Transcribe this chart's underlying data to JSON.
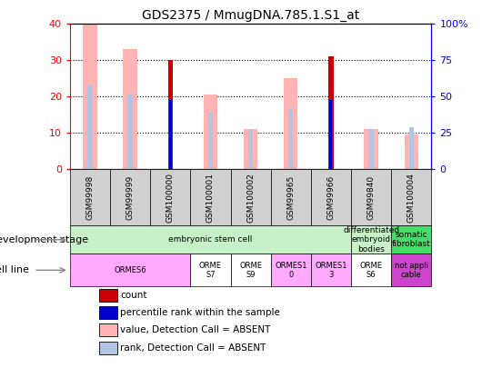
{
  "title": "GDS2375 / MmugDNA.785.1.S1_at",
  "samples": [
    "GSM99998",
    "GSM99999",
    "GSM100000",
    "GSM100001",
    "GSM100002",
    "GSM99965",
    "GSM99966",
    "GSM99840",
    "GSM100004"
  ],
  "count_values": [
    0,
    0,
    30,
    0,
    0,
    0,
    31,
    0,
    0
  ],
  "count_rank_values": [
    0,
    0,
    19,
    0,
    0,
    0,
    19,
    0,
    0
  ],
  "absent_value": [
    40,
    33,
    0,
    20.5,
    11,
    25,
    0,
    11,
    9.5
  ],
  "absent_rank": [
    23,
    20.5,
    0,
    15.5,
    11,
    16.5,
    0,
    11,
    11.5
  ],
  "ylim_left": [
    0,
    40
  ],
  "ylim_right": [
    0,
    100
  ],
  "yticks_left": [
    0,
    10,
    20,
    30,
    40
  ],
  "yticks_right": [
    0,
    25,
    50,
    75,
    100
  ],
  "ytick_labels_right": [
    "0",
    "25",
    "50",
    "75",
    "100%"
  ],
  "color_count": "#cc0000",
  "color_count_rank": "#0000cc",
  "color_absent_value": "#ffb3b3",
  "color_absent_rank": "#b3c4e0",
  "dev_stage_groups": [
    {
      "label": "embryonic stem cell",
      "start": 0,
      "end": 7,
      "color": "#c8f0c8"
    },
    {
      "label": "differentiated\nembryoid\nbodies",
      "start": 7,
      "end": 8,
      "color": "#c8f0c8"
    },
    {
      "label": "somatic\nfibroblast",
      "start": 8,
      "end": 9,
      "color": "#44dd66"
    }
  ],
  "cell_line_groups": [
    {
      "label": "ORMES6",
      "start": 0,
      "end": 3,
      "color": "#ffaaff"
    },
    {
      "label": "ORME\nS7",
      "start": 3,
      "end": 4,
      "color": "#ffffff"
    },
    {
      "label": "ORME\nS9",
      "start": 4,
      "end": 5,
      "color": "#ffffff"
    },
    {
      "label": "ORMES1\n0",
      "start": 5,
      "end": 6,
      "color": "#ffaaff"
    },
    {
      "label": "ORMES1\n3",
      "start": 6,
      "end": 7,
      "color": "#ffaaff"
    },
    {
      "label": "ORME\nS6",
      "start": 7,
      "end": 8,
      "color": "#ffffff"
    },
    {
      "label": "not appli\ncable",
      "start": 8,
      "end": 9,
      "color": "#cc44cc"
    }
  ],
  "background_color": "#ffffff",
  "plot_bg_color": "#ffffff",
  "label_dev_stage": "development stage",
  "label_cell_line": "cell line"
}
